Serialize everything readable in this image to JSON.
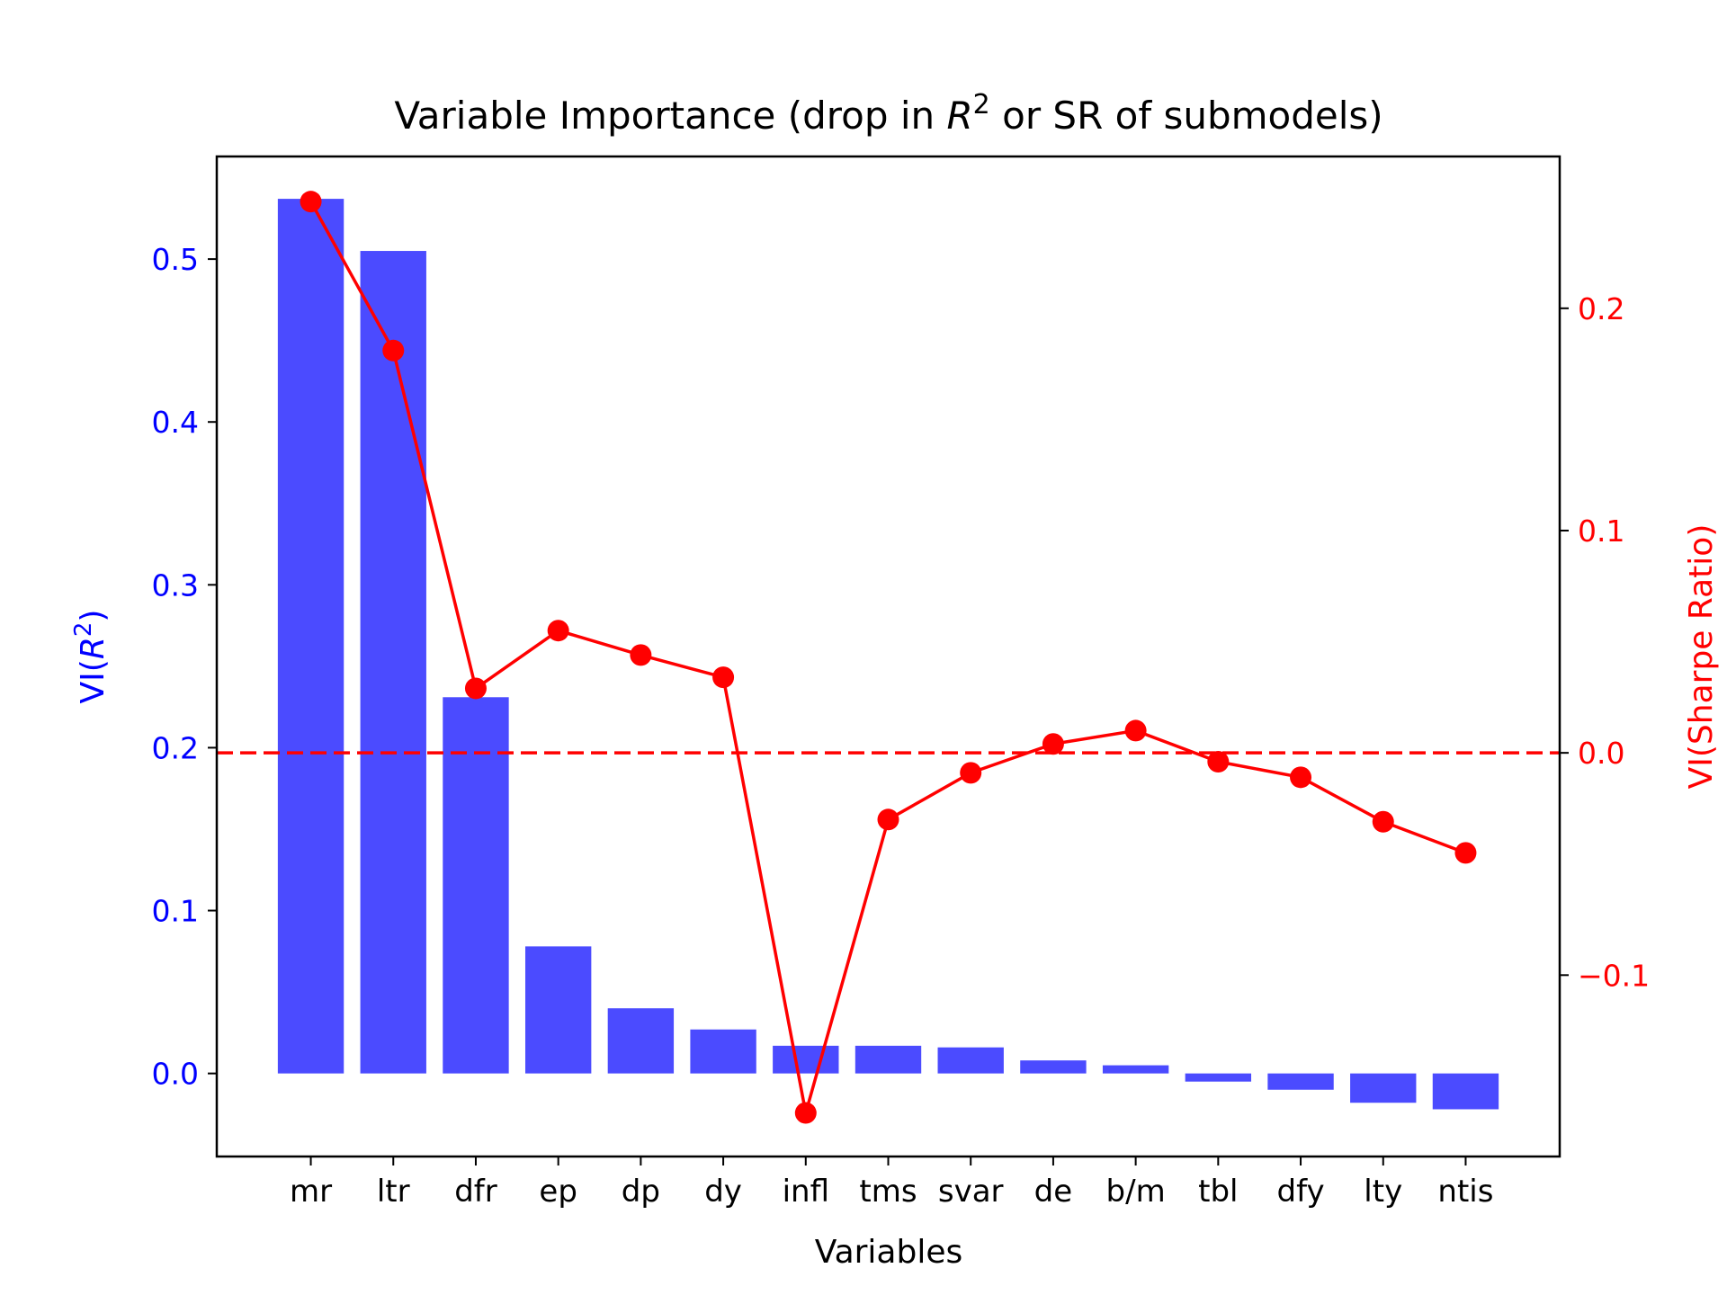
{
  "chart_data": {
    "type": "bar",
    "title": "Variable Importance (drop in R² or SR of submodels)",
    "title_parts": {
      "before": "Variable Importance (drop in ",
      "italic": "R",
      "sup": "2",
      "after": " or SR of submodels)"
    },
    "xlabel": "Variables",
    "ylabel_left": {
      "before": "VI(",
      "italic": "R",
      "sup": "2",
      "after": ")"
    },
    "ylabel_right": "VI(Sharpe Ratio)",
    "categories": [
      "mr",
      "ltr",
      "dfr",
      "ep",
      "dp",
      "dy",
      "infl",
      "tms",
      "svar",
      "de",
      "b/m",
      "tbl",
      "dfy",
      "lty",
      "ntis"
    ],
    "bar_series": {
      "axis": "left",
      "values": [
        0.537,
        0.505,
        0.231,
        0.078,
        0.04,
        0.027,
        0.017,
        0.017,
        0.016,
        0.008,
        0.005,
        -0.005,
        -0.01,
        -0.018,
        -0.022
      ],
      "color": "#4b4bff"
    },
    "line_series": {
      "axis": "right",
      "values": [
        0.248,
        0.181,
        0.029,
        0.055,
        0.044,
        0.034,
        -0.162,
        -0.03,
        -0.009,
        0.004,
        0.01,
        -0.004,
        -0.011,
        -0.031,
        -0.045
      ],
      "color": "#ff0000"
    },
    "zero_line": {
      "axis": "right",
      "value": 0.0,
      "style": "dashed",
      "color": "#ff0000"
    },
    "left_axis": {
      "ylim": [
        -0.051,
        0.563
      ],
      "ticks": [
        0.0,
        0.1,
        0.2,
        0.3,
        0.4,
        0.5
      ],
      "tick_labels": [
        "0.0",
        "0.1",
        "0.2",
        "0.3",
        "0.4",
        "0.5"
      ],
      "color": "#0000ff"
    },
    "right_axis": {
      "ylim": [
        -0.1816,
        0.2683
      ],
      "ticks": [
        -0.1,
        0.0,
        0.1,
        0.2
      ],
      "tick_labels": [
        "−0.1",
        "0.0",
        "0.1",
        "0.2"
      ],
      "color": "#ff0000"
    },
    "grid": false,
    "legend": "none"
  }
}
